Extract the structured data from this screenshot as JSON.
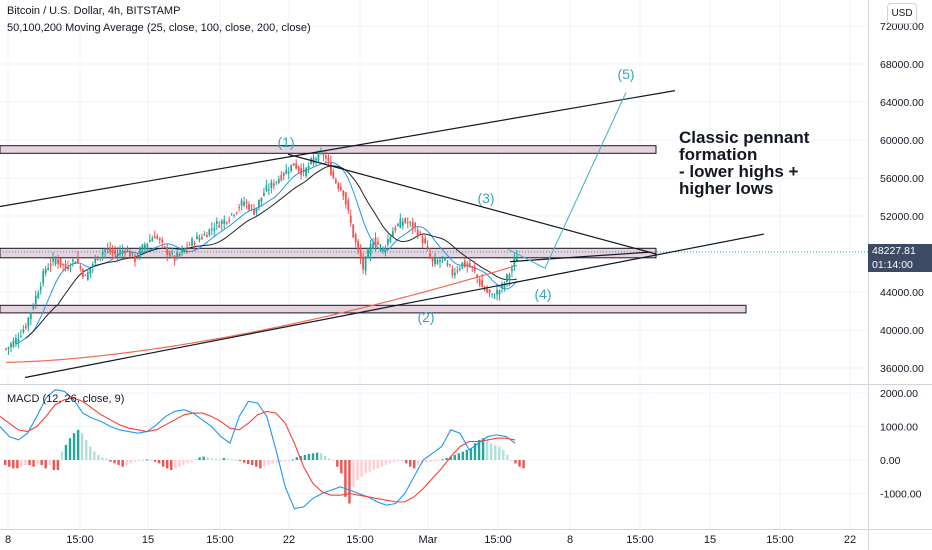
{
  "header": {
    "title": "Bitcoin / U.S. Dollar, 4h, BITSTAMP",
    "indicator": "50,100,200 Moving Average (25, close, 100, close, 200, close)",
    "macd_label": "MACD (12, 26, close, 9)",
    "currency": "USD"
  },
  "price_tag": {
    "price": "48227.81",
    "countdown": "01:14:00"
  },
  "annotation": {
    "text": "Classic pennant\nformation\n- lower highs +\nhigher lows"
  },
  "wave_labels": [
    "(1)",
    "(2)",
    "(3)",
    "(4)",
    "(5)"
  ],
  "colors": {
    "up": "#26a69a",
    "down": "#ef5350",
    "zone_fill": "#e6d3e0",
    "zone_stroke": "#131722",
    "ma50": "#2196f3",
    "ma100": "#222222",
    "ma200": "#ef6c50",
    "projection": "#4fb3c6",
    "label": "#37a6b9",
    "macd": "#2196f3",
    "signal": "#f44336"
  },
  "chart_data": [
    {
      "type": "line",
      "title": "Bitcoin / U.S. Dollar, 4h, BITSTAMP",
      "x_ticks": [
        "8",
        "15:00",
        "15",
        "15:00",
        "22",
        "15:00",
        "Mar",
        "15:00",
        "8",
        "15:00",
        "15",
        "15:00",
        "22"
      ],
      "y_ticks": [
        "72000.00",
        "68000.00",
        "64000.00",
        "60000.00",
        "56000.00",
        "52000.00",
        "48000.00",
        "44000.00",
        "40000.00",
        "36000.00"
      ],
      "ylim": [
        35000,
        73500
      ],
      "series": [
        {
          "name": "price (close, approx.)",
          "x": [
            0,
            4,
            8,
            12,
            16,
            20,
            24,
            28,
            32,
            36,
            40,
            44,
            48,
            52,
            56,
            60,
            64,
            68,
            72,
            76,
            80,
            84,
            88,
            92,
            96,
            100,
            104,
            108,
            112,
            116,
            120,
            124,
            128,
            130,
            132,
            136,
            140,
            144,
            148,
            152,
            156,
            160,
            164,
            168,
            172,
            176,
            180,
            184,
            188,
            192,
            196,
            200,
            204,
            206
          ],
          "y": [
            38000,
            39000,
            40500,
            43500,
            46500,
            47500,
            46500,
            47500,
            45500,
            47500,
            48500,
            48000,
            48500,
            47500,
            49000,
            50000,
            48500,
            47500,
            48500,
            49500,
            50000,
            51000,
            51500,
            52500,
            53500,
            52500,
            54500,
            55500,
            56500,
            57500,
            56500,
            58000,
            58500,
            57500,
            56000,
            54500,
            50000,
            46500,
            49500,
            48500,
            50500,
            51500,
            51000,
            49500,
            47000,
            47500,
            46000,
            47000,
            46500,
            44500,
            43500,
            44500,
            46500,
            48000
          ]
        }
      ],
      "horizontal_zones": [
        [
          58600,
          59400
        ],
        [
          47600,
          48600
        ],
        [
          41800,
          42600
        ]
      ],
      "wave_points": [
        {
          "label": "(1)",
          "price": 58500
        },
        {
          "label": "(2)",
          "price": 43500
        },
        {
          "label": "(3)",
          "price": 52500
        },
        {
          "label": "(4)",
          "price": 46500
        },
        {
          "label": "(5)",
          "price": 65000
        }
      ],
      "last_price": 48227.81
    },
    {
      "type": "bar",
      "title": "MACD (12, 26, close, 9)",
      "y_ticks": [
        "2000.00",
        "1000.00",
        "0.00",
        "-1000.00"
      ],
      "ylim": [
        -1500,
        2100
      ],
      "series": [
        {
          "name": "histogram",
          "values": [
            -150,
            -200,
            -250,
            -250,
            -200,
            -150,
            -150,
            -200,
            -100,
            -150,
            -250,
            -150,
            -300,
            -300,
            250,
            450,
            650,
            800,
            900,
            800,
            600,
            400,
            250,
            150,
            80,
            40,
            -50,
            -100,
            -150,
            -200,
            -150,
            -100,
            -50,
            -30,
            0,
            20,
            0,
            -50,
            -100,
            -200,
            -250,
            -300,
            -250,
            -200,
            -150,
            -100,
            -50,
            30,
            80,
            100,
            80,
            50,
            30,
            20,
            60,
            40,
            20,
            10,
            -30,
            -80,
            -120,
            -150,
            -200,
            -250,
            -200,
            -150,
            -100,
            -80,
            -60,
            -40,
            -20,
            20,
            80,
            120,
            150,
            180,
            200,
            220,
            200,
            120,
            50,
            -30,
            -200,
            -400,
            -1100,
            -1300,
            -800,
            -600,
            -500,
            -400,
            -350,
            -300,
            -250,
            -200,
            -150,
            -100,
            -60,
            -30,
            -10,
            -100,
            -200,
            -250,
            -150,
            -100,
            -80,
            -60,
            -40,
            -20,
            20,
            60,
            100,
            150,
            200,
            250,
            300,
            350,
            500,
            600,
            650,
            600,
            500,
            450,
            400,
            300,
            150,
            0,
            -100,
            -200,
            -250
          ]
        },
        {
          "name": "MACD",
          "values": [
            1000,
            700,
            600,
            800,
            1300,
            1850,
            2100,
            2050,
            1800,
            1400,
            1250,
            1150,
            1000,
            900,
            850,
            800,
            850,
            1050,
            1300,
            1450,
            1500,
            1400,
            1200,
            1000,
            700,
            500,
            1300,
            1750,
            1700,
            1300,
            300,
            -800,
            -1450,
            -1400,
            -1150,
            -1000,
            -900,
            -800,
            -900,
            -1000,
            -1100,
            -1250,
            -1350,
            -1300,
            -1000,
            -500,
            0,
            200,
            400,
            900,
            800,
            300,
            500,
            700,
            750,
            700,
            500
          ]
        },
        {
          "name": "Signal",
          "values": [
            1300,
            1100,
            900,
            850,
            1000,
            1300,
            1650,
            1800,
            1850,
            1750,
            1550,
            1350,
            1200,
            1050,
            950,
            900,
            850,
            900,
            1050,
            1200,
            1350,
            1400,
            1400,
            1300,
            1150,
            950,
            900,
            1100,
            1350,
            1450,
            1400,
            1100,
            500,
            -200,
            -700,
            -950,
            -1050,
            -1050,
            -1000,
            -1050,
            -1100,
            -1150,
            -1200,
            -1250,
            -1250,
            -1100,
            -850,
            -550,
            -250,
            100,
            400,
            550,
            550,
            600,
            650,
            650,
            600
          ]
        }
      ]
    }
  ]
}
